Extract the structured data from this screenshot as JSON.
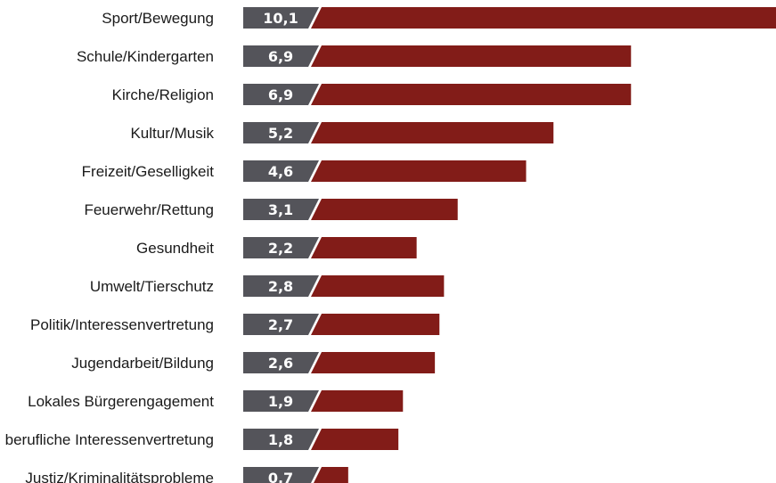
{
  "chart_data": {
    "type": "bar",
    "orientation": "horizontal",
    "categories": [
      "Sport/Bewegung",
      "Schule/Kindergarten",
      "Kirche/Religion",
      "Kultur/Musik",
      "Freizeit/Geselligkeit",
      "Feuerwehr/Rettung",
      "Gesundheit",
      "Umwelt/Tierschutz",
      "Politik/Interessenvertretung",
      "Jugendarbeit/Bildung",
      "Lokales Bürgerengagement",
      "berufliche Interessenvertretung",
      "Justiz/Kriminalitätsprobleme"
    ],
    "values": [
      10.1,
      6.9,
      6.9,
      5.2,
      4.6,
      3.1,
      2.2,
      2.8,
      2.7,
      2.6,
      1.9,
      1.8,
      0.7
    ],
    "value_labels": [
      "10,1",
      "6,9",
      "6,9",
      "5,2",
      "4,6",
      "3,1",
      "2,2",
      "2,8",
      "2,7",
      "2,6",
      "1,9",
      "1,8",
      "0,7"
    ],
    "title": "",
    "xlabel": "",
    "ylabel": "",
    "grid": false,
    "legend": "none",
    "colors": {
      "bar": "#821c18",
      "label_box": "#54545a",
      "separator": "#ffffff",
      "label_text": "#ffffff",
      "category_text": "#1a1a1a"
    }
  }
}
